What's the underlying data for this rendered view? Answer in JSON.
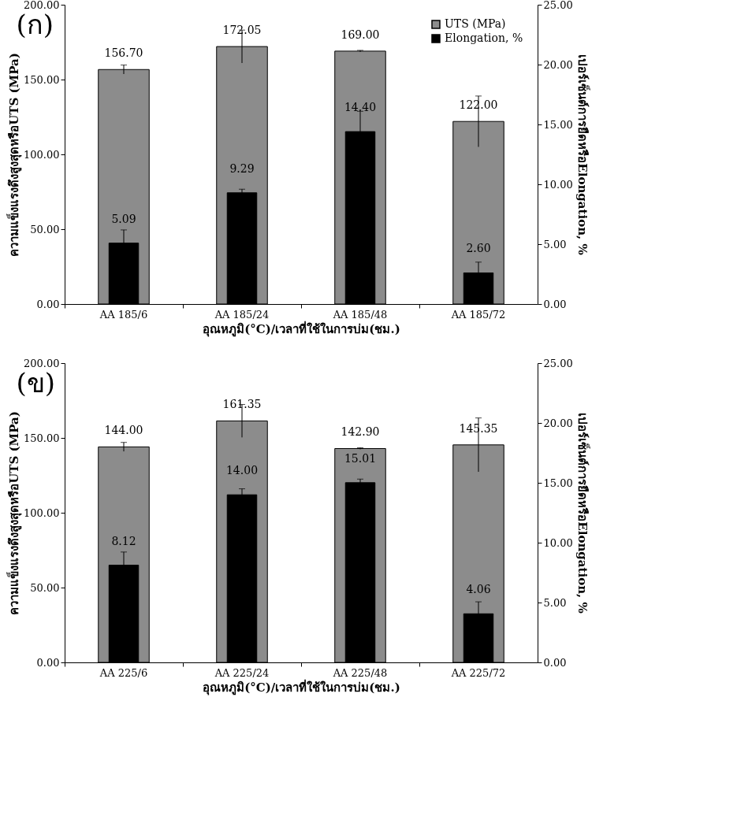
{
  "chart_data": [
    {
      "type": "bar",
      "title": "(ก)",
      "categories": [
        "AA 185/6",
        "AA 185/24",
        "AA 185/48",
        "AA 185/72"
      ],
      "xlabel": "อุณหภูมิ(°C)/เวลาที่ใช้ในการบ่ม(ชม.)",
      "ylabel": "ความแข็งแรงดึงสูงสุดหรือUTS (MPa)",
      "y2label": "เปอร์เซ็นต์การยืดหรือElongation, %",
      "series": [
        {
          "name": "UTS (MPa)",
          "color": "#8c8c8c",
          "values": [
            156.7,
            172.05,
            169.0,
            122.0
          ],
          "errors": [
            3,
            11,
            0.5,
            17
          ],
          "value_labels": [
            "156.70",
            "172.05",
            "169.00",
            "122.00"
          ]
        },
        {
          "name": "Elongation, %",
          "color": "#000000",
          "axis": "y2",
          "values": [
            5.09,
            9.29,
            14.4,
            2.6
          ],
          "errors": [
            1.1,
            0.3,
            1.7,
            0.9
          ],
          "value_labels": [
            "5.09",
            "9.29",
            "14.40",
            "2.60"
          ]
        }
      ],
      "ylim": [
        0,
        200
      ],
      "yticks": [
        {
          "value": 0,
          "label": "0.00"
        },
        {
          "value": 50,
          "label": "50.00"
        },
        {
          "value": 100,
          "label": "100.00"
        },
        {
          "value": 150,
          "label": "150.00"
        },
        {
          "value": 200,
          "label": "200.00"
        }
      ],
      "y2lim": [
        0,
        25
      ],
      "y2ticks": [
        {
          "value": 0,
          "label": "0.00"
        },
        {
          "value": 5,
          "label": "5.00"
        },
        {
          "value": 10,
          "label": "10.00"
        },
        {
          "value": 15,
          "label": "15.00"
        },
        {
          "value": 20,
          "label": "20.00"
        },
        {
          "value": 25,
          "label": "25.00"
        }
      ],
      "grid": false,
      "legend": "top right"
    },
    {
      "type": "bar",
      "title": "(ข)",
      "categories": [
        "AA 225/6",
        "AA 225/24",
        "AA 225/48",
        "AA 225/72"
      ],
      "xlabel": "อุณหภูมิ(°C)/เวลาที่ใช้ในการบ่ม(ชม.)",
      "ylabel": "ความแข็งแรงดึงสูงสุดหรือUTS (MPa)",
      "y2label": "เปอร์เซ็นต์การยืดหรือElongation, %",
      "series": [
        {
          "name": "UTS (MPa)",
          "color": "#8c8c8c",
          "values": [
            144.0,
            161.35,
            142.9,
            145.35
          ],
          "errors": [
            3,
            11,
            0.5,
            18
          ],
          "value_labels": [
            "144.00",
            "161.35",
            "142.90",
            "145.35"
          ]
        },
        {
          "name": "Elongation, %",
          "color": "#000000",
          "axis": "y2",
          "values": [
            8.12,
            14.0,
            15.01,
            4.06
          ],
          "errors": [
            1.1,
            0.5,
            0.3,
            1.0
          ],
          "value_labels": [
            "8.12",
            "14.00",
            "15.01",
            "4.06"
          ]
        }
      ],
      "ylim": [
        0,
        200
      ],
      "yticks": [
        {
          "value": 0,
          "label": "0.00"
        },
        {
          "value": 50,
          "label": "50.00"
        },
        {
          "value": 100,
          "label": "100.00"
        },
        {
          "value": 150,
          "label": "150.00"
        },
        {
          "value": 200,
          "label": "200.00"
        }
      ],
      "y2lim": [
        0,
        25
      ],
      "y2ticks": [
        {
          "value": 0,
          "label": "0.00"
        },
        {
          "value": 5,
          "label": "5.00"
        },
        {
          "value": 10,
          "label": "10.00"
        },
        {
          "value": 15,
          "label": "15.00"
        },
        {
          "value": 20,
          "label": "20.00"
        },
        {
          "value": 25,
          "label": "25.00"
        }
      ],
      "grid": false,
      "legend": "top right"
    }
  ]
}
